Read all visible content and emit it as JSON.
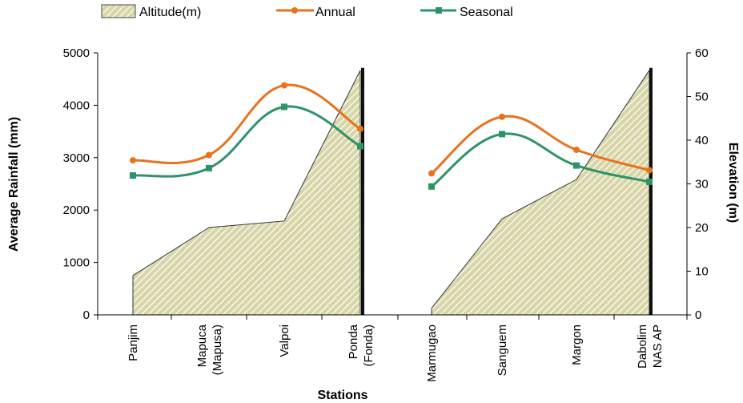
{
  "chart_data": {
    "type": "line",
    "xlabel": "Stations",
    "ylabel": "Average Rainfall (mm)",
    "y2label": "Elevation (m)",
    "ylim": [
      0,
      5000
    ],
    "y2lim": [
      0,
      60
    ],
    "yticks": [
      "5000",
      "4000",
      "3000",
      "2000",
      "1000",
      "0"
    ],
    "y2ticks": [
      "60",
      "50",
      "40",
      "30",
      "20",
      "10",
      "0"
    ],
    "legend_position": "top",
    "groups": [
      {
        "categories": [
          {
            "line1": "Panjim",
            "line2": ""
          },
          {
            "line1": "Mapuca",
            "line2": "(Mapusa)"
          },
          {
            "line1": "Valpoi",
            "line2": ""
          },
          {
            "line1": "Ponda",
            "line2": "(Fonda)"
          }
        ],
        "annual": [
          2950,
          3050,
          4380,
          3550
        ],
        "seasonal": [
          2660,
          2800,
          3970,
          3220
        ],
        "altitude": [
          9,
          20,
          21.5,
          56
        ]
      },
      {
        "categories": [
          {
            "line1": "Marmugao",
            "line2": ""
          },
          {
            "line1": "Sanguem",
            "line2": ""
          },
          {
            "line1": "Margon",
            "line2": ""
          },
          {
            "line1": "Dabolim",
            "line2": "NAS AP"
          }
        ],
        "annual": [
          2700,
          3780,
          3150,
          2760
        ],
        "seasonal": [
          2450,
          3450,
          2850,
          2540
        ],
        "altitude": [
          1.5,
          22,
          31,
          56
        ]
      }
    ],
    "series": [
      {
        "name": "Altitude(m)",
        "kind": "area",
        "color": "#c8c89a"
      },
      {
        "name": "Annual",
        "kind": "line",
        "color": "#e8731c"
      },
      {
        "name": "Seasonal",
        "kind": "line",
        "color": "#2e9468"
      }
    ]
  }
}
